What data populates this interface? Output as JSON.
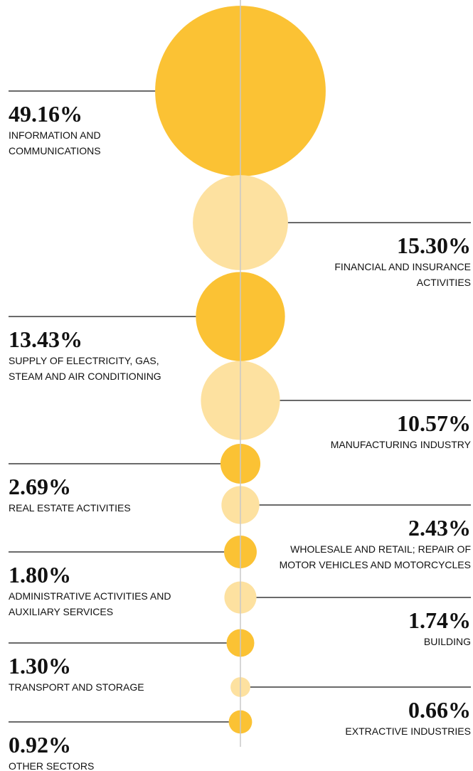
{
  "chart_data": {
    "type": "bubble",
    "categories": [
      "INFORMATION AND COMMUNICATIONS",
      "FINANCIAL AND INSURANCE ACTIVITIES",
      "SUPPLY OF ELECTRICITY, GAS, STEAM AND AIR CONDITIONING",
      "MANUFACTURING INDUSTRY",
      "REAL ESTATE ACTIVITIES",
      "WHOLESALE AND RETAIL; REPAIR OF MOTOR VEHICLES AND MOTORCYCLES",
      "ADMINISTRATIVE ACTIVITIES AND AUXILIARY SERVICES",
      "BUILDING",
      "TRANSPORT AND STORAGE",
      "EXTRACTIVE INDUSTRIES",
      "OTHER SECTORS"
    ],
    "values": [
      49.16,
      15.3,
      13.43,
      10.57,
      2.69,
      2.43,
      1.8,
      1.74,
      1.3,
      0.66,
      0.92
    ],
    "value_labels": [
      "49.16%",
      "15.30%",
      "13.43%",
      "10.57%",
      "2.69%",
      "2.43%",
      "1.80%",
      "1.74%",
      "1.30%",
      "0.66%",
      "0.92%"
    ],
    "colors": [
      "#fbc234",
      "#fde1a0",
      "#fbc234",
      "#fde1a0",
      "#fbc234",
      "#fde1a0",
      "#fbc234",
      "#fde1a0",
      "#fbc234",
      "#fde1a0",
      "#fbc234"
    ]
  }
}
